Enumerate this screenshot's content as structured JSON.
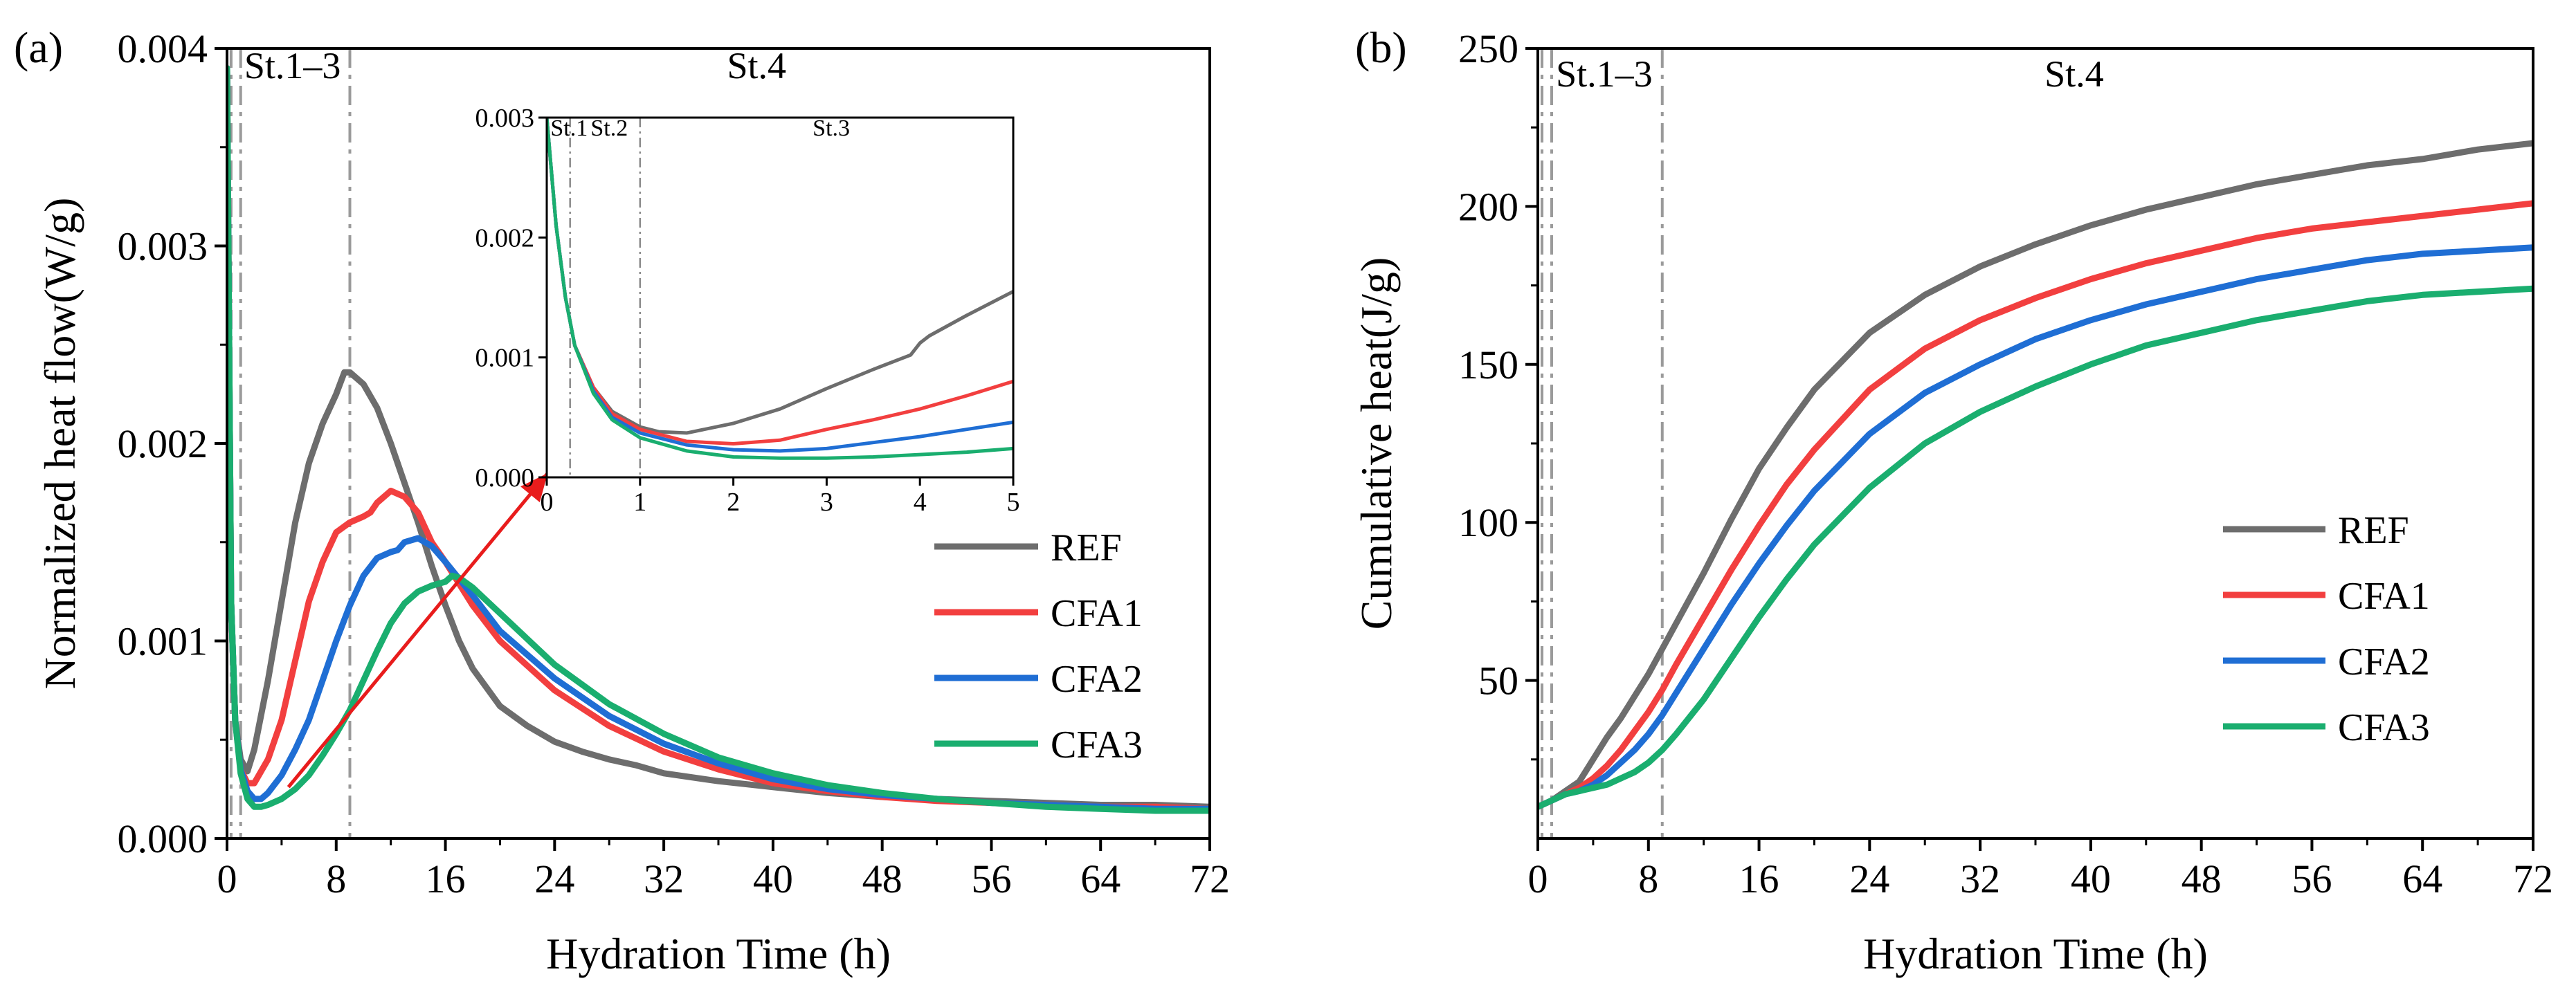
{
  "chart_data": [
    {
      "panel": "(a)",
      "type": "line",
      "xlabel": "Hydration Time (h)",
      "ylabel": "Normalized heat flow(W/g)",
      "xlim": [
        0,
        72
      ],
      "ylim": [
        0,
        0.004
      ],
      "xticks": [
        0,
        8,
        16,
        24,
        32,
        40,
        48,
        56,
        64,
        72
      ],
      "xtick_labels": [
        "0",
        "8",
        "16",
        "24",
        "32",
        "40",
        "48",
        "56",
        "64",
        "72"
      ],
      "yticks": [
        0,
        0.001,
        0.002,
        0.003,
        0.004
      ],
      "ytick_labels": [
        "0.000",
        "0.001",
        "0.002",
        "0.003",
        "0.004"
      ],
      "stage_lines": [
        0.3,
        1,
        9
      ],
      "stage_labels": [
        {
          "text": "St.1–3",
          "x": 4.8,
          "y": 0.00385
        },
        {
          "text": "St.4",
          "x": 38.8,
          "y": 0.00385
        }
      ],
      "legend": [
        "REF",
        "CFA1",
        "CFA2",
        "CFA3"
      ],
      "series": [
        {
          "name": "REF",
          "color": "#6d6d6d",
          "x": [
            0,
            0.3,
            0.6,
            1,
            1.5,
            2,
            3,
            4,
            5,
            6,
            7,
            8,
            8.6,
            9,
            10,
            11,
            12,
            13,
            14,
            15,
            16,
            17,
            18,
            20,
            22,
            24,
            26,
            28,
            30,
            31,
            32,
            36,
            40,
            44,
            48,
            52,
            56,
            60,
            64,
            68,
            72
          ],
          "y": [
            0.0039,
            0.0012,
            0.0006,
            0.0004,
            0.00034,
            0.00045,
            0.0008,
            0.0012,
            0.0016,
            0.0019,
            0.0021,
            0.00225,
            0.00236,
            0.00236,
            0.0023,
            0.00218,
            0.002,
            0.0018,
            0.0016,
            0.00138,
            0.00118,
            0.001,
            0.00086,
            0.00067,
            0.00057,
            0.00049,
            0.00044,
            0.0004,
            0.00037,
            0.00035,
            0.00033,
            0.00029,
            0.00026,
            0.00023,
            0.00021,
            0.0002,
            0.00019,
            0.00018,
            0.00017,
            0.00017,
            0.00016
          ]
        },
        {
          "name": "CFA1",
          "color": "#f23f3f",
          "x": [
            0,
            0.3,
            0.6,
            1,
            1.5,
            2,
            3,
            4,
            5,
            6,
            7,
            8,
            9,
            10,
            10.5,
            11,
            12,
            13,
            14,
            15,
            16,
            18,
            20,
            24,
            28,
            32,
            36,
            40,
            44,
            48,
            52,
            56,
            60,
            64,
            68,
            72
          ],
          "y": [
            0.0039,
            0.0012,
            0.0006,
            0.00035,
            0.00028,
            0.00028,
            0.0004,
            0.0006,
            0.0009,
            0.0012,
            0.0014,
            0.00155,
            0.0016,
            0.00163,
            0.00165,
            0.0017,
            0.00176,
            0.00173,
            0.00165,
            0.0015,
            0.0014,
            0.00118,
            0.001,
            0.00075,
            0.00057,
            0.00044,
            0.00035,
            0.00028,
            0.00024,
            0.00021,
            0.00019,
            0.00018,
            0.00017,
            0.00016,
            0.00016,
            0.00015
          ]
        },
        {
          "name": "CFA2",
          "color": "#1f6ed4",
          "x": [
            0,
            0.3,
            0.6,
            1,
            1.5,
            2,
            2.5,
            3,
            4,
            5,
            6,
            7,
            8,
            9,
            10,
            11,
            12,
            12.5,
            13,
            14,
            15,
            16,
            18,
            20,
            24,
            28,
            32,
            36,
            40,
            44,
            48,
            52,
            56,
            60,
            64,
            68,
            72
          ],
          "y": [
            0.0039,
            0.0012,
            0.0006,
            0.00035,
            0.00024,
            0.0002,
            0.0002,
            0.00023,
            0.00032,
            0.00045,
            0.0006,
            0.0008,
            0.001,
            0.00118,
            0.00133,
            0.00142,
            0.00145,
            0.00146,
            0.0015,
            0.00152,
            0.00148,
            0.0014,
            0.00123,
            0.00105,
            0.00081,
            0.00062,
            0.00048,
            0.00038,
            0.0003,
            0.00025,
            0.00022,
            0.0002,
            0.00018,
            0.00017,
            0.00016,
            0.00015,
            0.00015
          ]
        },
        {
          "name": "CFA3",
          "color": "#1aae6f",
          "x": [
            0,
            0.3,
            0.6,
            1,
            1.5,
            2,
            2.5,
            3,
            4,
            5,
            6,
            7,
            8,
            9,
            10,
            11,
            12,
            13,
            14,
            15,
            16,
            16.5,
            17,
            18,
            20,
            24,
            28,
            32,
            36,
            40,
            44,
            48,
            52,
            56,
            60,
            64,
            68,
            72
          ],
          "y": [
            0.0039,
            0.0012,
            0.0006,
            0.00033,
            0.0002,
            0.00016,
            0.00016,
            0.00017,
            0.0002,
            0.00025,
            0.00032,
            0.00042,
            0.00053,
            0.00065,
            0.0008,
            0.00095,
            0.00109,
            0.00119,
            0.00125,
            0.00128,
            0.0013,
            0.00133,
            0.00132,
            0.00127,
            0.00114,
            0.00088,
            0.00068,
            0.00053,
            0.00041,
            0.00033,
            0.00027,
            0.00023,
            0.0002,
            0.00018,
            0.00016,
            0.00015,
            0.00014,
            0.00014
          ]
        }
      ],
      "inset": {
        "xlim": [
          0,
          5
        ],
        "ylim": [
          0,
          0.003
        ],
        "xticks": [
          0,
          1,
          2,
          3,
          4,
          5
        ],
        "xtick_labels": [
          "0",
          "1",
          "2",
          "3",
          "4",
          "5"
        ],
        "yticks": [
          0,
          0.001,
          0.002,
          0.003
        ],
        "ytick_labels": [
          "0.000",
          "0.001",
          "0.002",
          "0.003"
        ],
        "stage_lines": [
          0.25,
          1
        ],
        "stage_labels": [
          {
            "text": "St.1",
            "x": 0.04,
            "y": 0.00285
          },
          {
            "text": "St.2",
            "x": 0.47,
            "y": 0.00285
          },
          {
            "text": "St.3",
            "x": 2.85,
            "y": 0.00285
          }
        ],
        "series": [
          {
            "name": "REF",
            "color": "#6d6d6d",
            "x": [
              0,
              0.1,
              0.2,
              0.3,
              0.5,
              0.7,
              1,
              1.2,
              1.5,
              2,
              2.5,
              3,
              3.5,
              3.9,
              4,
              4.1,
              4.5,
              5
            ],
            "y": [
              0.003,
              0.0021,
              0.0015,
              0.0011,
              0.00075,
              0.00055,
              0.00042,
              0.00038,
              0.00037,
              0.00045,
              0.00057,
              0.00074,
              0.0009,
              0.00102,
              0.00112,
              0.00118,
              0.00135,
              0.00155
            ]
          },
          {
            "name": "CFA1",
            "color": "#f23f3f",
            "x": [
              0,
              0.1,
              0.2,
              0.3,
              0.5,
              0.7,
              1,
              1.5,
              2,
              2.5,
              3,
              3.5,
              4,
              4.5,
              5
            ],
            "y": [
              0.003,
              0.0021,
              0.0015,
              0.0011,
              0.00075,
              0.00053,
              0.0004,
              0.0003,
              0.00028,
              0.00031,
              0.0004,
              0.00048,
              0.00057,
              0.00068,
              0.0008
            ]
          },
          {
            "name": "CFA2",
            "color": "#1f6ed4",
            "x": [
              0,
              0.1,
              0.2,
              0.3,
              0.5,
              0.7,
              1,
              1.5,
              2,
              2.5,
              3,
              3.5,
              4,
              4.5,
              5
            ],
            "y": [
              0.003,
              0.0021,
              0.0015,
              0.0011,
              0.00072,
              0.0005,
              0.00037,
              0.00027,
              0.00023,
              0.00022,
              0.00024,
              0.00029,
              0.00034,
              0.0004,
              0.00046
            ]
          },
          {
            "name": "CFA3",
            "color": "#1aae6f",
            "x": [
              0,
              0.1,
              0.2,
              0.3,
              0.5,
              0.7,
              1,
              1.5,
              2,
              2.5,
              3,
              3.5,
              4,
              4.5,
              5
            ],
            "y": [
              0.003,
              0.0021,
              0.0015,
              0.0011,
              0.0007,
              0.00048,
              0.00033,
              0.00022,
              0.00017,
              0.00016,
              0.00016,
              0.00017,
              0.00019,
              0.00021,
              0.00024
            ]
          }
        ]
      },
      "arrow": {
        "from": [
          4.5,
          0.00026
        ],
        "to": [
          23.5,
          0.00185
        ],
        "color": "#e81c1c"
      }
    },
    {
      "panel": "(b)",
      "type": "line",
      "xlabel": "Hydration Time (h)",
      "ylabel": "Cumulative heat(J/g)",
      "xlim": [
        0,
        72
      ],
      "ylim": [
        0,
        250
      ],
      "xticks": [
        0,
        8,
        16,
        24,
        32,
        40,
        48,
        56,
        64,
        72
      ],
      "xtick_labels": [
        "0",
        "8",
        "16",
        "24",
        "32",
        "40",
        "48",
        "56",
        "64",
        "72"
      ],
      "yticks": [
        50,
        100,
        150,
        200,
        250
      ],
      "ytick_labels": [
        "50",
        "100",
        "150",
        "200",
        "250"
      ],
      "stage_lines": [
        0.3,
        1,
        9
      ],
      "stage_labels": [
        {
          "text": "St.1–3",
          "x": 4.8,
          "y": 238
        },
        {
          "text": "St.4",
          "x": 38.8,
          "y": 238
        }
      ],
      "legend": [
        "REF",
        "CFA1",
        "CFA2",
        "CFA3"
      ],
      "series": [
        {
          "name": "REF",
          "color": "#6d6d6d",
          "x": [
            0,
            1,
            2,
            3,
            4,
            5,
            6,
            7,
            8,
            9,
            10,
            12,
            14,
            16,
            18,
            20,
            24,
            28,
            32,
            36,
            40,
            44,
            48,
            52,
            56,
            60,
            64,
            68,
            72
          ],
          "y": [
            10,
            12,
            15,
            18,
            25,
            32,
            38,
            45,
            52,
            60,
            68,
            84,
            101,
            117,
            130,
            142,
            160,
            172,
            181,
            188,
            194,
            199,
            203,
            207,
            210,
            213,
            215,
            218,
            220
          ]
        },
        {
          "name": "CFA1",
          "color": "#f23f3f",
          "x": [
            0,
            1,
            2,
            3,
            4,
            5,
            6,
            7,
            8,
            9,
            10,
            12,
            14,
            16,
            18,
            20,
            24,
            28,
            32,
            36,
            40,
            44,
            48,
            52,
            56,
            60,
            64,
            68,
            72
          ],
          "y": [
            10,
            12,
            14,
            16,
            19,
            23,
            28,
            34,
            40,
            47,
            55,
            70,
            85,
            99,
            112,
            123,
            142,
            155,
            164,
            171,
            177,
            182,
            186,
            190,
            193,
            195,
            197,
            199,
            201
          ]
        },
        {
          "name": "CFA2",
          "color": "#1f6ed4",
          "x": [
            0,
            1,
            2,
            3,
            4,
            5,
            6,
            7,
            8,
            9,
            10,
            12,
            14,
            16,
            18,
            20,
            24,
            28,
            32,
            36,
            40,
            44,
            48,
            52,
            56,
            60,
            64,
            68,
            72
          ],
          "y": [
            10,
            12,
            14,
            15,
            17,
            20,
            24,
            28,
            33,
            39,
            46,
            60,
            74,
            87,
            99,
            110,
            128,
            141,
            150,
            158,
            164,
            169,
            173,
            177,
            180,
            183,
            185,
            186,
            187
          ]
        },
        {
          "name": "CFA3",
          "color": "#1aae6f",
          "x": [
            0,
            1,
            2,
            3,
            4,
            5,
            6,
            7,
            8,
            9,
            10,
            12,
            14,
            16,
            18,
            20,
            24,
            28,
            32,
            36,
            40,
            44,
            48,
            52,
            56,
            60,
            64,
            68,
            72
          ],
          "y": [
            10,
            12,
            14,
            15,
            16,
            17,
            19,
            21,
            24,
            28,
            33,
            44,
            57,
            70,
            82,
            93,
            111,
            125,
            135,
            143,
            150,
            156,
            160,
            164,
            167,
            170,
            172,
            173,
            174
          ]
        }
      ]
    }
  ]
}
